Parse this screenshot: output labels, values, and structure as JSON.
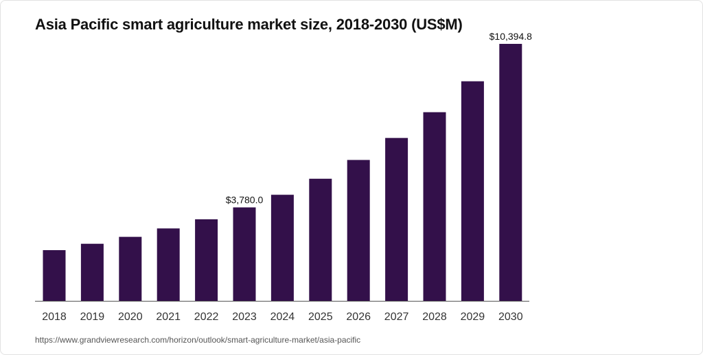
{
  "source_url": "https://www.grandviewresearch.com/horizon/outlook/smart-agriculture-market/asia-pacific",
  "colors": {
    "bar": "#33104a",
    "axis": "#555555"
  },
  "chart_data": {
    "type": "bar",
    "title": "Asia Pacific smart agriculture market size, 2018-2030 (US$M)",
    "xlabel": "",
    "ylabel": "",
    "categories": [
      "2018",
      "2019",
      "2020",
      "2021",
      "2022",
      "2023",
      "2024",
      "2025",
      "2026",
      "2027",
      "2028",
      "2029",
      "2030"
    ],
    "values": [
      2050,
      2310,
      2590,
      2930,
      3300,
      3780,
      4290,
      4940,
      5700,
      6590,
      7630,
      8880,
      10394.8
    ],
    "data_labels": [
      {
        "category": "2023",
        "text": "$3,780.0"
      },
      {
        "category": "2030",
        "text": "$10,394.8"
      }
    ],
    "ylim": [
      0,
      10394.8
    ],
    "grid": false,
    "legend": "none"
  }
}
